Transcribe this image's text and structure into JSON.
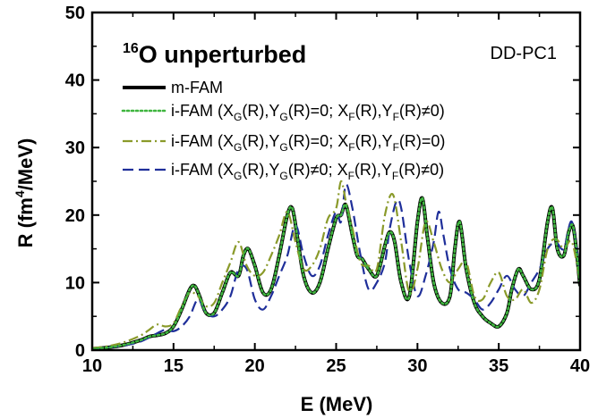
{
  "chart_data": {
    "type": "line",
    "panel_title": "16O unperturbed",
    "title_superscript": "16",
    "title_rest": "O unperturbed",
    "annotation": "DD-PC1",
    "xlabel": "E (MeV)",
    "ylabel_parts": [
      "R (fm",
      "4",
      "/MeV)"
    ],
    "xlim": [
      10,
      40
    ],
    "ylim": [
      0,
      50
    ],
    "xticks": [
      10,
      15,
      20,
      25,
      30,
      35,
      40
    ],
    "yticks": [
      0,
      10,
      20,
      30,
      40,
      50
    ],
    "grid": false,
    "legend_position": "top-left",
    "series": [
      {
        "name": "m-FAM",
        "legend_segments": [
          [
            "m-FAM",
            ""
          ]
        ],
        "color": "#000000",
        "style": "solid",
        "x": [
          10.0,
          11.0,
          12.0,
          13.0,
          13.5,
          14.0,
          14.5,
          15.0,
          15.5,
          16.0,
          16.3,
          16.6,
          17.0,
          17.5,
          18.0,
          18.5,
          19.0,
          19.3,
          19.6,
          20.0,
          20.5,
          21.0,
          21.5,
          22.0,
          22.3,
          22.6,
          23.0,
          23.5,
          24.0,
          24.5,
          25.0,
          25.3,
          25.6,
          26.0,
          26.3,
          26.6,
          27.0,
          27.5,
          28.0,
          28.3,
          28.6,
          29.0,
          29.5,
          30.0,
          30.3,
          30.6,
          31.0,
          31.5,
          32.0,
          32.3,
          32.6,
          33.0,
          33.5,
          34.0,
          34.5,
          35.0,
          35.5,
          35.8,
          36.2,
          36.5,
          37.0,
          37.5,
          38.0,
          38.3,
          38.6,
          39.0,
          39.3,
          39.6,
          40.0
        ],
        "y": [
          0.2,
          0.4,
          0.8,
          1.5,
          2.0,
          2.2,
          2.5,
          3.5,
          6.0,
          9.0,
          9.5,
          8.0,
          5.5,
          5.5,
          8.5,
          11.5,
          11.0,
          14.0,
          15.0,
          12.5,
          8.5,
          9.0,
          14.0,
          20.0,
          21.0,
          17.0,
          11.0,
          8.5,
          10.0,
          15.0,
          19.5,
          20.0,
          21.5,
          17.0,
          14.0,
          13.5,
          12.0,
          11.0,
          15.5,
          17.5,
          16.0,
          10.0,
          8.0,
          19.0,
          22.5,
          17.0,
          10.0,
          7.0,
          8.0,
          15.0,
          19.0,
          12.0,
          7.0,
          5.0,
          4.0,
          3.5,
          5.5,
          9.0,
          12.0,
          11.0,
          9.0,
          10.5,
          19.0,
          21.0,
          15.0,
          14.0,
          17.5,
          18.0,
          9.5
        ]
      },
      {
        "name": "i-FAM (XG(R),YG(R)=0; XF(R),YF(R)≠0)",
        "legend_segments": [
          [
            "i-FAM (X",
            ""
          ],
          [
            "G",
            "sub"
          ],
          [
            "(R),Y",
            ""
          ],
          [
            "G",
            "sub"
          ],
          [
            "(R)=0; X",
            ""
          ],
          [
            "F",
            "sub"
          ],
          [
            "(R),Y",
            ""
          ],
          [
            "F",
            "sub"
          ],
          [
            "(R)≠0)",
            ""
          ]
        ],
        "color": "#3fb53f",
        "style": "dotted",
        "x": [
          10.0,
          11.0,
          12.0,
          13.0,
          13.5,
          14.0,
          14.5,
          15.0,
          15.5,
          16.0,
          16.3,
          16.6,
          17.0,
          17.5,
          18.0,
          18.5,
          19.0,
          19.3,
          19.6,
          20.0,
          20.5,
          21.0,
          21.5,
          22.0,
          22.3,
          22.6,
          23.0,
          23.5,
          24.0,
          24.5,
          25.0,
          25.3,
          25.6,
          26.0,
          26.3,
          26.6,
          27.0,
          27.5,
          28.0,
          28.3,
          28.6,
          29.0,
          29.5,
          30.0,
          30.3,
          30.6,
          31.0,
          31.5,
          32.0,
          32.3,
          32.6,
          33.0,
          33.5,
          34.0,
          34.5,
          35.0,
          35.5,
          35.8,
          36.2,
          36.5,
          37.0,
          37.5,
          38.0,
          38.3,
          38.6,
          39.0,
          39.3,
          39.6,
          40.0
        ],
        "y": [
          0.2,
          0.4,
          0.8,
          1.5,
          2.0,
          2.2,
          2.5,
          3.5,
          6.0,
          9.0,
          9.5,
          8.0,
          5.5,
          5.5,
          8.5,
          11.5,
          11.0,
          14.0,
          15.0,
          12.5,
          8.5,
          9.0,
          14.0,
          20.0,
          21.0,
          17.0,
          11.0,
          8.5,
          10.0,
          15.0,
          19.5,
          20.0,
          21.5,
          17.0,
          14.0,
          13.5,
          12.0,
          11.0,
          15.5,
          17.5,
          16.0,
          10.0,
          8.0,
          19.0,
          22.5,
          17.0,
          10.0,
          7.0,
          8.0,
          15.0,
          19.0,
          12.0,
          7.0,
          5.0,
          4.0,
          3.5,
          5.5,
          9.0,
          12.0,
          11.0,
          9.0,
          10.5,
          19.0,
          21.0,
          15.0,
          14.0,
          17.5,
          18.0,
          9.5
        ]
      },
      {
        "name": "i-FAM (XG(R),YG(R)=0; XF(R),YF(R)=0)",
        "legend_segments": [
          [
            "i-FAM (X",
            ""
          ],
          [
            "G",
            "sub"
          ],
          [
            "(R),Y",
            ""
          ],
          [
            "G",
            "sub"
          ],
          [
            "(R)=0; X",
            ""
          ],
          [
            "F",
            "sub"
          ],
          [
            "(R),Y",
            ""
          ],
          [
            "F",
            "sub"
          ],
          [
            "(R)=0)",
            ""
          ]
        ],
        "color": "#8a9a2a",
        "style": "dashdot",
        "x": [
          10.0,
          11.0,
          12.0,
          13.0,
          13.5,
          14.0,
          14.5,
          15.0,
          15.5,
          16.0,
          16.5,
          17.0,
          17.5,
          18.0,
          18.5,
          19.0,
          19.5,
          20.0,
          20.5,
          21.0,
          21.5,
          22.0,
          22.5,
          23.0,
          23.5,
          24.0,
          24.5,
          25.0,
          25.3,
          25.6,
          26.0,
          26.5,
          27.0,
          27.5,
          28.0,
          28.5,
          29.0,
          29.5,
          30.0,
          30.5,
          31.0,
          31.5,
          32.0,
          32.5,
          33.0,
          33.5,
          34.0,
          34.5,
          35.0,
          35.5,
          36.0,
          36.5,
          37.0,
          37.5,
          38.0,
          38.5,
          39.0,
          39.5,
          40.0
        ],
        "y": [
          0.3,
          0.6,
          1.2,
          2.2,
          3.0,
          3.8,
          3.5,
          4.0,
          6.5,
          8.5,
          8.0,
          6.5,
          7.0,
          10.0,
          13.0,
          16.0,
          12.5,
          11.0,
          11.5,
          14.0,
          17.0,
          20.5,
          16.0,
          12.0,
          12.5,
          15.0,
          19.5,
          21.0,
          25.0,
          22.0,
          18.0,
          13.0,
          12.5,
          12.0,
          20.0,
          23.0,
          16.0,
          8.5,
          12.0,
          19.0,
          16.0,
          12.0,
          10.0,
          12.0,
          13.0,
          8.0,
          7.5,
          10.0,
          11.5,
          8.0,
          7.5,
          9.0,
          7.0,
          9.0,
          15.0,
          16.5,
          15.0,
          16.0,
          10.0
        ]
      },
      {
        "name": "i-FAM (XG(R),YG(R)≠0; XF(R),YF(R)≠0)",
        "legend_segments": [
          [
            "i-FAM (X",
            ""
          ],
          [
            "G",
            "sub"
          ],
          [
            "(R),Y",
            ""
          ],
          [
            "G",
            "sub"
          ],
          [
            "(R)≠0; X",
            ""
          ],
          [
            "F",
            "sub"
          ],
          [
            "(R),Y",
            ""
          ],
          [
            "F",
            "sub"
          ],
          [
            "(R)≠0)",
            ""
          ]
        ],
        "color": "#1f2f9a",
        "style": "dashed",
        "x": [
          10.0,
          11.0,
          12.0,
          13.0,
          14.0,
          14.5,
          15.0,
          15.5,
          16.0,
          16.5,
          17.0,
          17.5,
          18.0,
          18.5,
          19.0,
          19.5,
          20.0,
          20.5,
          21.0,
          21.5,
          22.0,
          22.5,
          23.0,
          23.5,
          24.0,
          24.5,
          25.0,
          25.3,
          25.6,
          26.0,
          26.5,
          27.0,
          27.5,
          28.0,
          28.3,
          28.7,
          29.0,
          29.5,
          30.0,
          30.5,
          31.0,
          31.3,
          31.6,
          32.0,
          32.5,
          33.0,
          33.5,
          34.0,
          34.5,
          35.0,
          35.5,
          36.0,
          36.5,
          37.0,
          37.5,
          38.0,
          38.5,
          39.0,
          39.5,
          40.0
        ],
        "y": [
          0.2,
          0.4,
          0.7,
          1.3,
          2.5,
          3.0,
          2.8,
          3.5,
          5.0,
          7.5,
          5.5,
          5.0,
          6.0,
          8.0,
          12.0,
          12.0,
          7.5,
          6.0,
          8.0,
          11.0,
          14.0,
          18.5,
          14.0,
          11.0,
          12.5,
          17.0,
          20.5,
          19.0,
          24.5,
          21.0,
          14.0,
          9.0,
          10.0,
          13.0,
          18.0,
          22.0,
          21.0,
          13.0,
          8.0,
          11.0,
          16.0,
          20.5,
          17.0,
          12.0,
          9.0,
          8.5,
          7.5,
          6.0,
          7.0,
          9.0,
          11.0,
          9.0,
          8.0,
          10.0,
          12.0,
          15.0,
          16.0,
          15.0,
          19.0,
          11.0
        ]
      }
    ]
  }
}
